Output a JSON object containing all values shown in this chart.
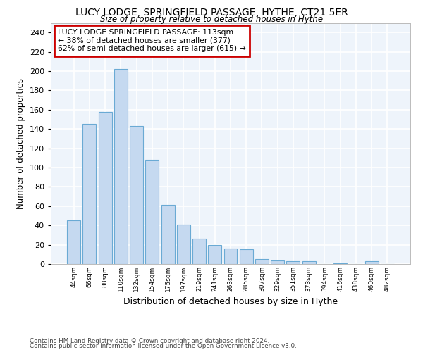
{
  "title": "LUCY LODGE, SPRINGFIELD PASSAGE, HYTHE, CT21 5ER",
  "subtitle": "Size of property relative to detached houses in Hythe",
  "xlabel": "Distribution of detached houses by size in Hythe",
  "ylabel": "Number of detached properties",
  "bar_values": [
    45,
    145,
    158,
    202,
    143,
    108,
    61,
    41,
    26,
    20,
    16,
    15,
    5,
    4,
    3,
    3,
    0,
    1,
    0,
    3
  ],
  "bar_labels": [
    "44sqm",
    "66sqm",
    "88sqm",
    "110sqm",
    "132sqm",
    "154sqm",
    "175sqm",
    "197sqm",
    "219sqm",
    "241sqm",
    "263sqm",
    "285sqm",
    "307sqm",
    "329sqm",
    "351sqm",
    "373sqm",
    "394sqm",
    "416sqm",
    "438sqm",
    "460sqm",
    "482sqm"
  ],
  "bar_color": "#c5d9f0",
  "bar_edge_color": "#6aaad4",
  "annotation_box_text": "LUCY LODGE SPRINGFIELD PASSAGE: 113sqm\n← 38% of detached houses are smaller (377)\n62% of semi-detached houses are larger (615) →",
  "annotation_box_color": "#ffffff",
  "annotation_box_edge_color": "#cc0000",
  "ylim": [
    0,
    250
  ],
  "yticks": [
    0,
    20,
    40,
    60,
    80,
    100,
    120,
    140,
    160,
    180,
    200,
    220,
    240
  ],
  "bg_color": "#ffffff",
  "plot_bg_color": "#eef4fb",
  "grid_color": "#ffffff",
  "footer_line1": "Contains HM Land Registry data © Crown copyright and database right 2024.",
  "footer_line2": "Contains public sector information licensed under the Open Government Licence v3.0."
}
